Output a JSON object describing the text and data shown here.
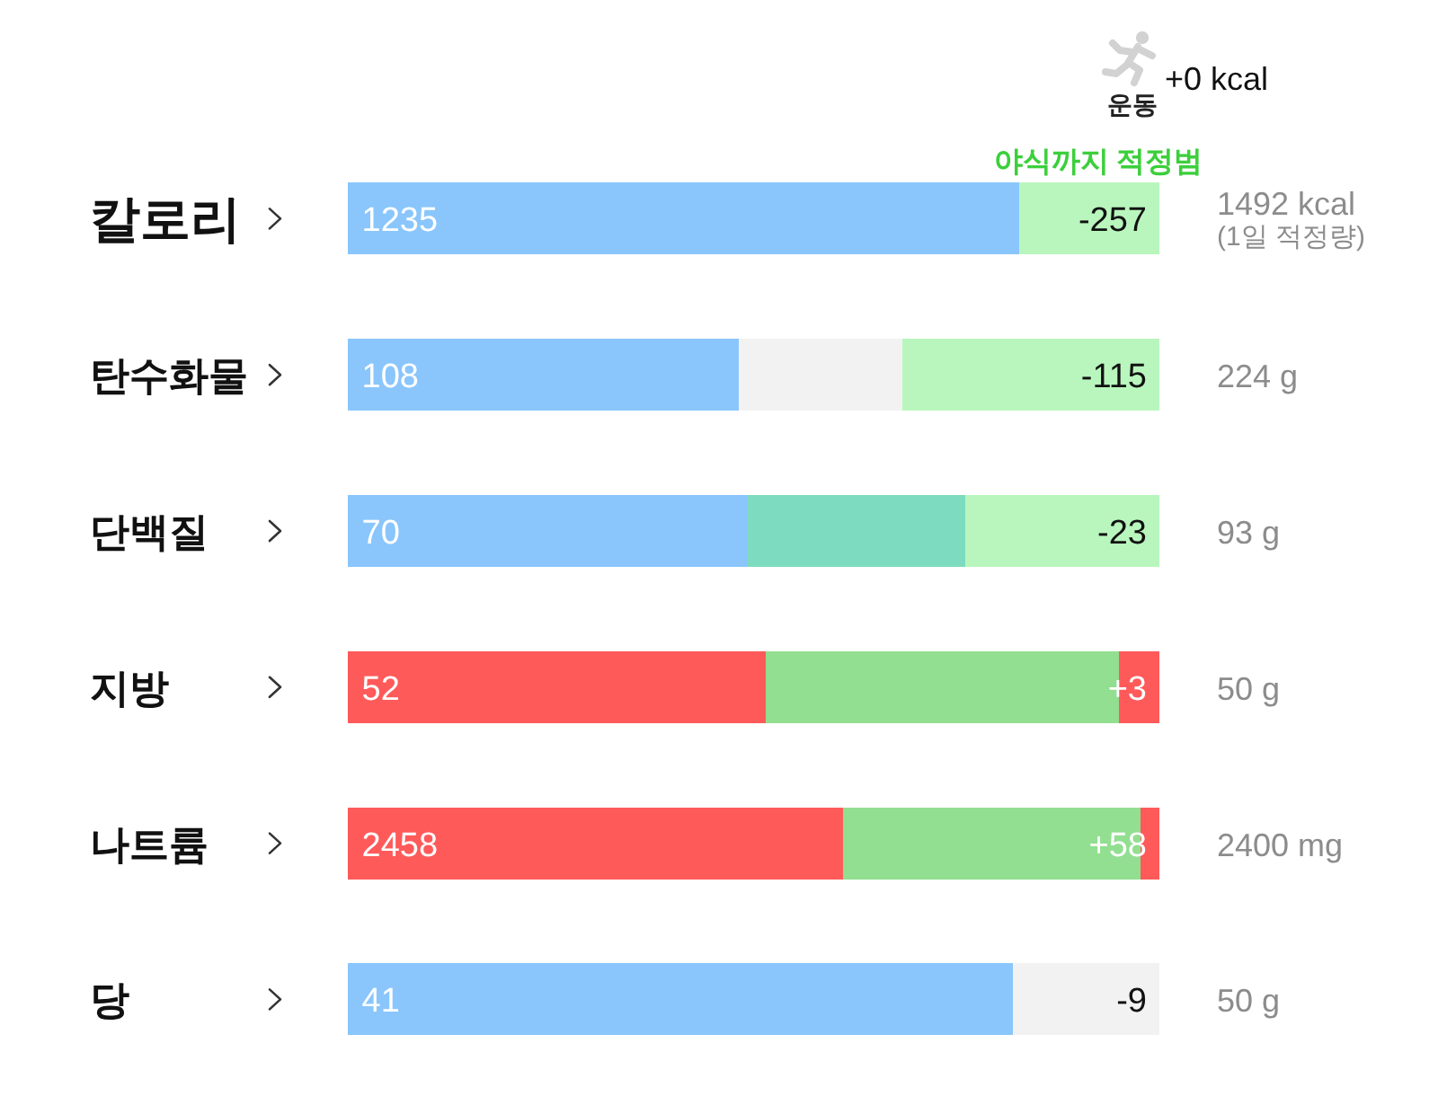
{
  "chart_data": [
    {
      "type": "bar",
      "orientation": "horizontal",
      "stacked": true,
      "tick_labels": "y",
      "categories": [
        "칼로리"
      ],
      "xlim": [
        0,
        1492
      ],
      "series": [
        {
          "color": "#8ac6fc",
          "values": [
            1235
          ],
          "value_labels": [
            "1235"
          ]
        },
        {
          "color": "#b9f6bd",
          "values": [
            257
          ]
        }
      ],
      "annotations": [
        "운동",
        "+0 kcal",
        "야식까지 적정범",
        {
          "text": "-257",
          "x": 1492
        },
        "1492 kcal",
        "(1일 적정량)"
      ]
    },
    {
      "type": "bar",
      "orientation": "horizontal",
      "stacked": true,
      "tick_labels": "y",
      "categories": [
        "탄수화물"
      ],
      "xlim": [
        0,
        224
      ],
      "series": [
        {
          "color": "#8ac6fc",
          "values": [
            108
          ],
          "value_labels": [
            "108"
          ]
        },
        {
          "color": "#f2f2f2",
          "values": [
            45
          ]
        },
        {
          "color": "#b9f6bd",
          "values": [
            71
          ]
        }
      ],
      "annotations": [
        {
          "text": "-115",
          "x": 224
        },
        "224 g"
      ]
    },
    {
      "type": "bar",
      "orientation": "horizontal",
      "stacked": true,
      "tick_labels": "y",
      "categories": [
        "단백질"
      ],
      "xlim": [
        0,
        142
      ],
      "series": [
        {
          "color": "#8ac6fc",
          "values": [
            70
          ],
          "value_labels": [
            "70"
          ]
        },
        {
          "color": "#7ddcbf",
          "values": [
            38
          ]
        },
        {
          "color": "#b9f6bd",
          "values": [
            34
          ]
        }
      ],
      "annotations": [
        {
          "text": "-23",
          "x": 142
        },
        "93 g"
      ]
    },
    {
      "type": "bar",
      "orientation": "horizontal",
      "stacked": true,
      "tick_labels": "y",
      "categories": [
        "지방"
      ],
      "xlim": [
        0,
        101
      ],
      "series": [
        {
          "color": "#ff5a5a",
          "values": [
            52
          ],
          "value_labels": [
            "52"
          ]
        },
        {
          "color": "#92df91",
          "values": [
            44
          ]
        },
        {
          "color": "#ff5a5a",
          "values": [
            5
          ]
        }
      ],
      "annotations": [
        {
          "text": "+3",
          "x": 101
        },
        "50 g"
      ]
    },
    {
      "type": "bar",
      "orientation": "horizontal",
      "stacked": true,
      "tick_labels": "y",
      "categories": [
        "나트륨"
      ],
      "xlim": [
        0,
        4030
      ],
      "series": [
        {
          "color": "#ff5a5a",
          "values": [
            2458
          ],
          "value_labels": [
            "2458"
          ]
        },
        {
          "color": "#92df91",
          "values": [
            1480
          ]
        },
        {
          "color": "#ff5a5a",
          "values": [
            92
          ]
        }
      ],
      "annotations": [
        {
          "text": "+58",
          "x": 4030
        },
        "2400 mg"
      ]
    },
    {
      "type": "bar",
      "orientation": "horizontal",
      "stacked": true,
      "tick_labels": "y",
      "categories": [
        "당"
      ],
      "xlim": [
        0,
        50
      ],
      "series": [
        {
          "color": "#8ac6fc",
          "values": [
            41
          ],
          "value_labels": [
            "41"
          ]
        },
        {
          "color": "#f2f2f2",
          "values": [
            9
          ]
        }
      ],
      "annotations": [
        {
          "text": "-9",
          "x": 50
        },
        "50 g"
      ]
    }
  ]
}
